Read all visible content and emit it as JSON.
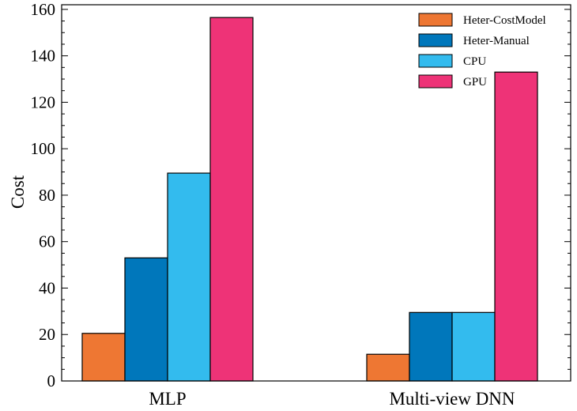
{
  "chart_data": {
    "type": "bar",
    "categories": [
      "MLP",
      "Multi-view DNN"
    ],
    "series": [
      {
        "name": "Heter-CostModel",
        "values": [
          20.5,
          11.5
        ],
        "color": "#EE7733"
      },
      {
        "name": "Heter-Manual",
        "values": [
          53,
          29.5
        ],
        "color": "#0077BB"
      },
      {
        "name": "CPU",
        "values": [
          89.5,
          29.5
        ],
        "color": "#33BBEE"
      },
      {
        "name": "GPU",
        "values": [
          156.5,
          133
        ],
        "color": "#EE3377"
      }
    ],
    "title": "",
    "xlabel": "",
    "ylabel": "Cost",
    "ylim": [
      0,
      162
    ],
    "yticks": [
      0,
      20,
      40,
      60,
      80,
      100,
      120,
      140,
      160
    ],
    "grid": false,
    "legend_position": "top-right"
  }
}
